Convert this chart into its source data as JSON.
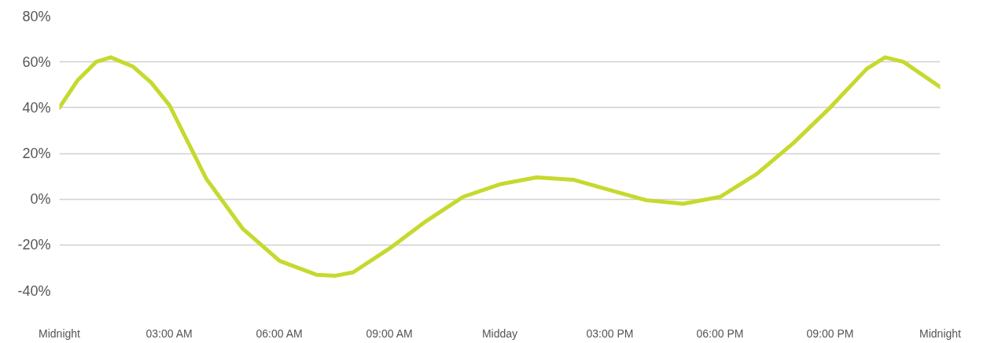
{
  "chart_data": {
    "type": "line",
    "x": [
      0,
      0.5,
      1,
      1.4,
      2,
      2.5,
      3,
      4,
      5,
      6,
      7,
      7.5,
      8,
      9,
      10,
      11,
      12,
      13,
      14,
      15,
      16,
      17,
      18,
      19,
      20,
      21,
      22,
      22.5,
      23,
      24
    ],
    "series": [
      {
        "color": "#c6d92e",
        "values": [
          40,
          52,
          60,
          62,
          58,
          51,
          41,
          9,
          -13,
          -27,
          -33,
          -33.5,
          -32,
          -21.5,
          -9.5,
          1,
          6.5,
          9.5,
          8.5,
          4,
          -0.5,
          -2,
          1,
          11,
          24.5,
          40,
          57,
          62,
          60,
          49
        ]
      }
    ],
    "xlim": [
      0,
      24
    ],
    "xticks": [
      {
        "value": 0,
        "label": "Midnight"
      },
      {
        "value": 3,
        "label": "03:00 AM"
      },
      {
        "value": 6,
        "label": "06:00 AM"
      },
      {
        "value": 9,
        "label": "09:00 AM"
      },
      {
        "value": 12,
        "label": "Midday"
      },
      {
        "value": 15,
        "label": "03:00 PM"
      },
      {
        "value": 18,
        "label": "06:00 PM"
      },
      {
        "value": 21,
        "label": "09:00 PM"
      },
      {
        "value": 24,
        "label": "Midnight"
      }
    ],
    "ylim": [
      -40,
      80
    ],
    "yticks": [
      {
        "value": -40,
        "label": "-40%"
      },
      {
        "value": -20,
        "label": "-20%"
      },
      {
        "value": 0,
        "label": "0%"
      },
      {
        "value": 20,
        "label": "20%"
      },
      {
        "value": 40,
        "label": "40%"
      },
      {
        "value": 60,
        "label": "60%"
      },
      {
        "value": 80,
        "label": "80%"
      }
    ],
    "grid": "y",
    "marker": "none",
    "line_style": "solid"
  }
}
